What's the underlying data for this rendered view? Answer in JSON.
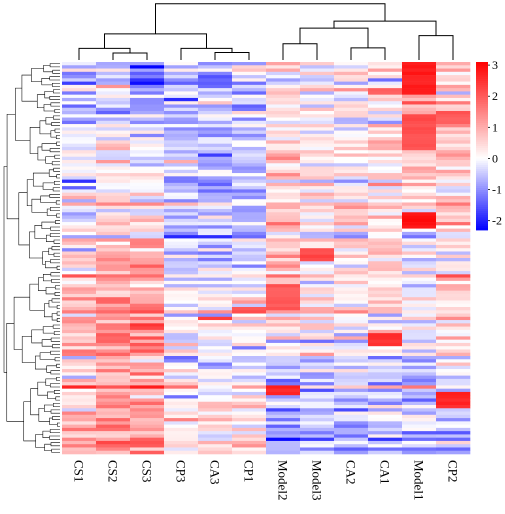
{
  "chart_data": {
    "type": "heatmap",
    "title": "",
    "columns": [
      "CS1",
      "CS2",
      "CS3",
      "CP3",
      "CA3",
      "CP1",
      "Model2",
      "Model3",
      "CA2",
      "CA1",
      "Model1",
      "CP2"
    ],
    "rows_approx": 120,
    "color_scale": {
      "min": -2.3,
      "max": 3.1,
      "ticks": [
        -2,
        -1,
        0,
        1,
        2,
        3
      ],
      "low_color": "#0000ff",
      "mid_color": "#ffffff",
      "high_color": "#ff0000"
    },
    "column_dendrogram": {
      "leaf_order": [
        "CS1",
        "CS2",
        "CS3",
        "CP3",
        "CA3",
        "CP1",
        "Model2",
        "Model3",
        "CA2",
        "CA1",
        "Model1",
        "CP2"
      ],
      "merges": [
        {
          "id": "a",
          "left": "CS2",
          "right": "CS3",
          "height": 0.12
        },
        {
          "id": "b",
          "left": "CS1",
          "right": "a",
          "height": 0.2
        },
        {
          "id": "c",
          "left": "CA3",
          "right": "CP1",
          "height": 0.13
        },
        {
          "id": "d",
          "left": "CP3",
          "right": "c",
          "height": 0.2
        },
        {
          "id": "e",
          "left": "b",
          "right": "d",
          "height": 0.45
        },
        {
          "id": "f",
          "left": "CA2",
          "right": "CA1",
          "height": 0.21
        },
        {
          "id": "g",
          "left": "Model2",
          "right": "Model3",
          "height": 0.28
        },
        {
          "id": "h",
          "left": "g",
          "right": "f",
          "height": 0.55
        },
        {
          "id": "i",
          "left": "Model1",
          "right": "CP2",
          "height": 0.42
        },
        {
          "id": "j",
          "left": "h",
          "right": "i",
          "height": 0.67
        },
        {
          "id": "k",
          "left": "e",
          "right": "j",
          "height": 0.97
        }
      ]
    },
    "column_profiles": {
      "CS1": [
        -0.6,
        0.5,
        0.9
      ],
      "CS2": [
        -0.8,
        0.9,
        1.3
      ],
      "CS3": [
        -1.2,
        0.9,
        1.3
      ],
      "CP3": [
        -0.6,
        -0.4,
        0.4
      ],
      "CA3": [
        -0.7,
        -0.5,
        0.4
      ],
      "CP1": [
        -0.6,
        -0.3,
        0.5
      ],
      "Model2": [
        0.3,
        0.9,
        -1.3
      ],
      "Model3": [
        0.1,
        0.3,
        -0.8
      ],
      "CA2": [
        0.1,
        0.2,
        -0.9
      ],
      "CA1": [
        0.3,
        0.5,
        -0.8
      ],
      "Model1": [
        1.6,
        -0.2,
        -0.7
      ],
      "CP2": [
        0.6,
        0.5,
        -0.9
      ]
    },
    "hotspots": [
      {
        "column": "Model1",
        "row_start": 0.0,
        "row_end": 0.08,
        "value": 2.9
      },
      {
        "column": "Model1",
        "row_start": 0.13,
        "row_end": 0.22,
        "value": 2.3
      },
      {
        "column": "Model1",
        "row_start": 0.38,
        "row_end": 0.42,
        "value": 3.0
      },
      {
        "column": "Model2",
        "row_start": 0.56,
        "row_end": 0.63,
        "value": 2.2
      },
      {
        "column": "Model2",
        "row_start": 0.82,
        "row_end": 0.845,
        "value": 2.8
      },
      {
        "column": "Model3",
        "row_start": 0.47,
        "row_end": 0.5,
        "value": 2.4
      },
      {
        "column": "CA1",
        "row_start": 0.69,
        "row_end": 0.72,
        "value": 2.6
      },
      {
        "column": "CA1",
        "row_start": 0.06,
        "row_end": 0.08,
        "value": 2.0
      },
      {
        "column": "CP2",
        "row_start": 0.12,
        "row_end": 0.15,
        "value": 2.2
      },
      {
        "column": "CP2",
        "row_start": 0.84,
        "row_end": 0.88,
        "value": 2.8
      },
      {
        "column": "CS3",
        "row_start": 0.665,
        "row_end": 0.68,
        "value": 2.5
      },
      {
        "column": "CS2",
        "row_start": 0.69,
        "row_end": 0.71,
        "value": 2.1
      },
      {
        "column": "CA3",
        "row_start": 0.645,
        "row_end": 0.655,
        "value": 2.6
      },
      {
        "column": "CP1",
        "row_start": 0.625,
        "row_end": 0.635,
        "value": 2.3
      },
      {
        "column": "CS2",
        "row_start": 0.055,
        "row_end": 0.065,
        "value": 1.5
      },
      {
        "column": "CA2",
        "row_start": 0.36,
        "row_end": 0.37,
        "value": 1.4
      }
    ],
    "row_dendrogram": true,
    "legend_position": "top-right",
    "xlabel": "",
    "ylabel": ""
  }
}
